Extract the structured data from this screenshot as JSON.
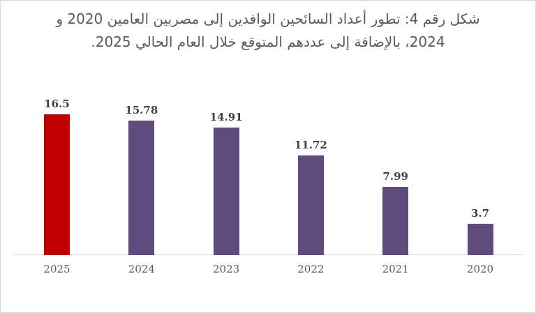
{
  "frame": {
    "background": "#FFFFFF",
    "border_color": "#D8D8D8"
  },
  "title": {
    "line1": "شكل رقم 4: تطور أعداد السائحين الوافدين إلى مصربين العامين 2020 و",
    "line2": "2024، بالإضافة إلى عددهم المتوقع خلال العام الحالي 2025.",
    "color": "#595959"
  },
  "chart_data": {
    "type": "bar",
    "title": "شكل رقم 4: تطور أعداد السائحين الوافدين إلى مصربين العامين 2020 و 2024، بالإضافة إلى عددهم المتوقع خلال العام الحالي 2025.",
    "categories": [
      "2025",
      "2024",
      "2023",
      "2022",
      "2021",
      "2020"
    ],
    "values": [
      16.5,
      15.78,
      14.91,
      11.72,
      7.99,
      3.7
    ],
    "data_labels": [
      "16.5",
      "15.78",
      "14.91",
      "11.72",
      "7.99",
      "3.7"
    ],
    "bar_colors": [
      "#C00000",
      "#5F4B7D",
      "#5F4B7D",
      "#5F4B7D",
      "#5F4B7D",
      "#5F4B7D"
    ],
    "highlight_category": "2025",
    "highlight_color": "#C00000",
    "series_color": "#5F4B7D",
    "xlabel": "",
    "ylabel": "",
    "ylim": [
      0,
      17.5
    ],
    "grid": false,
    "legend": false,
    "axis_line_color": "#D9D9D9",
    "value_label_color": "#3F3F3F",
    "tick_label_color": "#595959"
  }
}
